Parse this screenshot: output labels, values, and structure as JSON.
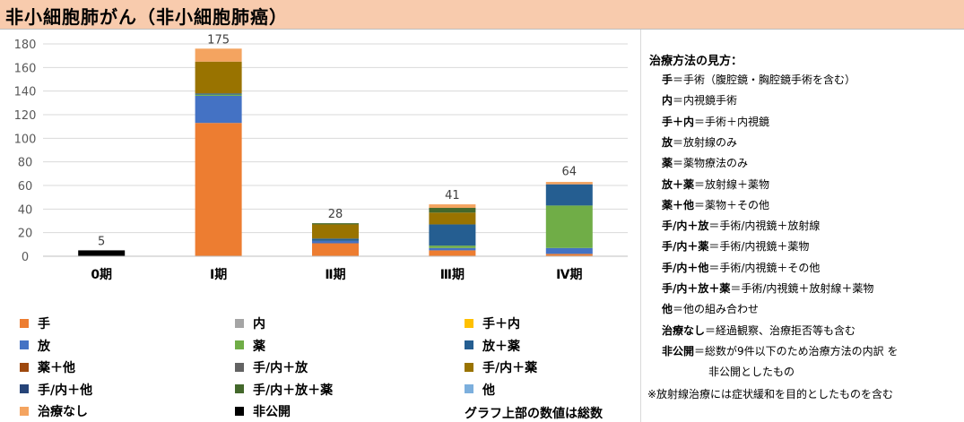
{
  "title": "非小細胞肺がん（非小細胞肺癌）",
  "chart_data": {
    "type": "bar",
    "stacked": true,
    "categories": [
      "0期",
      "Ⅰ期",
      "Ⅱ期",
      "Ⅲ期",
      "Ⅳ期"
    ],
    "ylim": [
      0,
      180
    ],
    "yticks": [
      0,
      20,
      40,
      60,
      80,
      100,
      120,
      140,
      160,
      180
    ],
    "grid": true,
    "totals": [
      5,
      175,
      28,
      41,
      64
    ],
    "series": [
      {
        "name": "手",
        "color": "#ed7d31",
        "values": [
          0,
          113,
          11,
          5,
          2
        ]
      },
      {
        "name": "内",
        "color": "#a5a5a5",
        "values": [
          0,
          0,
          0,
          0,
          0
        ]
      },
      {
        "name": "手＋内",
        "color": "#ffc000",
        "values": [
          0,
          0,
          0,
          0,
          0
        ]
      },
      {
        "name": "放",
        "color": "#4472c4",
        "values": [
          0,
          23,
          2,
          2,
          5
        ]
      },
      {
        "name": "薬",
        "color": "#70ad47",
        "values": [
          0,
          1,
          0,
          2,
          36
        ]
      },
      {
        "name": "放＋薬",
        "color": "#255e91",
        "values": [
          0,
          1,
          2,
          18,
          18
        ]
      },
      {
        "name": "薬＋他",
        "color": "#9e480e",
        "values": [
          0,
          0,
          0,
          0,
          0
        ]
      },
      {
        "name": "手/内＋放",
        "color": "#636363",
        "values": [
          0,
          0,
          0,
          0,
          0
        ]
      },
      {
        "name": "手/内＋薬",
        "color": "#997300",
        "values": [
          0,
          27,
          12,
          10,
          0
        ]
      },
      {
        "name": "手/内＋他",
        "color": "#264478",
        "values": [
          0,
          0,
          0,
          0,
          0
        ]
      },
      {
        "name": "手/内＋放＋薬",
        "color": "#43682b",
        "values": [
          0,
          0,
          1,
          4,
          0
        ]
      },
      {
        "name": "他",
        "color": "#7cafdd",
        "values": [
          0,
          0,
          0,
          0,
          0
        ]
      },
      {
        "name": "治療なし",
        "color": "#f4a460",
        "values": [
          0,
          11,
          0,
          3,
          2
        ]
      },
      {
        "name": "非公開",
        "color": "#000000",
        "values": [
          5,
          0,
          0,
          0,
          0
        ]
      }
    ]
  },
  "legend_note": "グラフ上部の数値は総数",
  "guide": {
    "heading": "治療方法の見方：",
    "items": [
      {
        "term": "手",
        "desc": "＝手術（腹腔鏡・胸腔鏡手術を含む）"
      },
      {
        "term": "内",
        "desc": "＝内視鏡手術"
      },
      {
        "term": "手＋内",
        "desc": "＝手術＋内視鏡"
      },
      {
        "term": "放",
        "desc": "＝放射線のみ"
      },
      {
        "term": "薬",
        "desc": "＝薬物療法のみ"
      },
      {
        "term": "放＋薬",
        "desc": "＝放射線＋薬物"
      },
      {
        "term": "薬＋他",
        "desc": "＝薬物＋その他"
      },
      {
        "term": "手/内＋放",
        "desc": "＝手術/内視鏡＋放射線"
      },
      {
        "term": "手/内＋薬",
        "desc": "＝手術/内視鏡＋薬物"
      },
      {
        "term": "手/内＋他",
        "desc": "＝手術/内視鏡＋その他"
      },
      {
        "term": "手/内＋放＋薬",
        "desc": "＝手術/内視鏡＋放射線＋薬物"
      },
      {
        "term": "他",
        "desc": "＝他の組み合わせ"
      },
      {
        "term": "治療なし",
        "desc": "＝経過観察、治療拒否等も含む"
      },
      {
        "term": "非公開",
        "desc": "＝総数が9件以下のため治療方法の内訳 を"
      },
      {
        "term": "",
        "desc": "非公開としたもの"
      }
    ],
    "footnote": "※放射線治療には症状緩和を目的としたものを含む"
  }
}
